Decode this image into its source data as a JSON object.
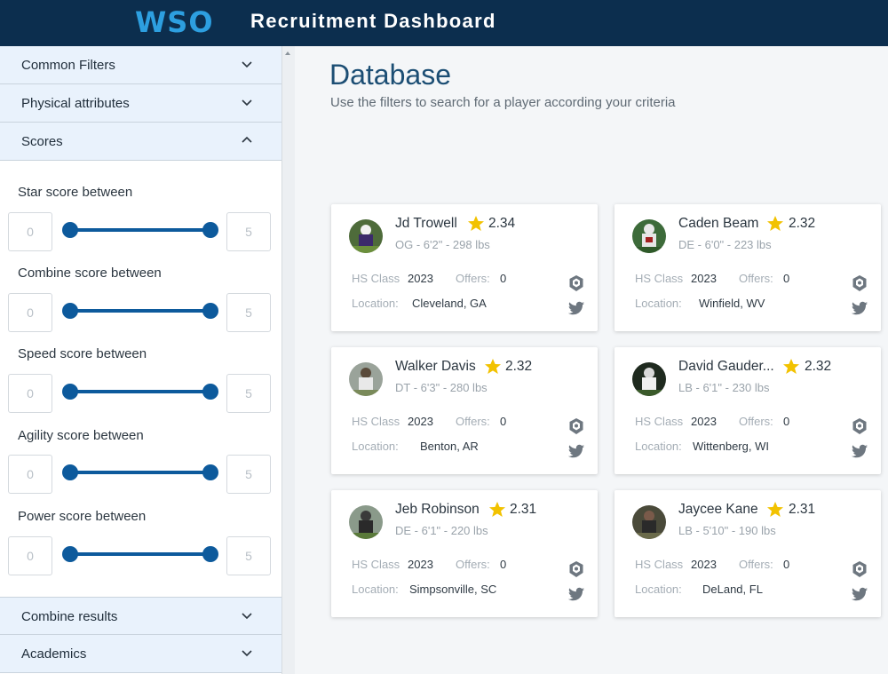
{
  "header": {
    "logo": "WSO",
    "title": "Recruitment Dashboard"
  },
  "sidebar": {
    "top_sections": [
      {
        "label": "Common Filters",
        "state": "collapsed"
      },
      {
        "label": "Physical attributes",
        "state": "collapsed"
      },
      {
        "label": "Scores",
        "state": "expanded"
      }
    ],
    "score_filters": [
      {
        "label": "Star score between",
        "min": "0",
        "max": "5",
        "range": [
          0,
          5
        ]
      },
      {
        "label": "Combine score between",
        "min": "0",
        "max": "5",
        "range": [
          0,
          5
        ]
      },
      {
        "label": "Speed score between",
        "min": "0",
        "max": "5",
        "range": [
          0,
          5
        ]
      },
      {
        "label": "Agility score between",
        "min": "0",
        "max": "5",
        "range": [
          0,
          5
        ]
      },
      {
        "label": "Power score between",
        "min": "0",
        "max": "5",
        "range": [
          0,
          5
        ]
      }
    ],
    "bottom_sections": [
      {
        "label": "Combine results",
        "state": "collapsed"
      },
      {
        "label": "Academics",
        "state": "collapsed"
      }
    ]
  },
  "main": {
    "title": "Database",
    "subtitle": "Use the filters to search for a player according your criteria",
    "field_labels": {
      "hs_class": "HS Class",
      "offers": "Offers:",
      "location": "Location:"
    },
    "players": [
      {
        "name": "Jd Trowell",
        "rating": "2.34",
        "meta": "OG - 6'2\" - 298 lbs",
        "hs_class": "2023",
        "offers": "0",
        "location": "Cleveland, GA"
      },
      {
        "name": "Caden Beam",
        "rating": "2.32",
        "meta": "DE - 6'0\" - 223 lbs",
        "hs_class": "2023",
        "offers": "0",
        "location": "Winfield, WV"
      },
      {
        "name": "Walker Davis",
        "rating": "2.32",
        "meta": "DT - 6'3\" - 280 lbs",
        "hs_class": "2023",
        "offers": "0",
        "location": "Benton, AR"
      },
      {
        "name": "David Gauder...",
        "rating": "2.32",
        "meta": "LB - 6'1\" - 230 lbs",
        "hs_class": "2023",
        "offers": "0",
        "location": "Wittenberg, WI"
      },
      {
        "name": "Jeb Robinson",
        "rating": "2.31",
        "meta": "DE - 6'1\" - 220 lbs",
        "hs_class": "2023",
        "offers": "0",
        "location": "Simpsonville, SC"
      },
      {
        "name": "Jaycee Kane",
        "rating": "2.31",
        "meta": "LB - 5'10\" - 190 lbs",
        "hs_class": "2023",
        "offers": "0",
        "location": "DeLand, FL"
      }
    ]
  },
  "colors": {
    "header_bg": "#0c2e4e",
    "logo": "#2d9fe0",
    "accent": "#0d5a9c",
    "star": "#f2c200",
    "title": "#1c4e74"
  },
  "icons": [
    "chevron-down-icon",
    "chevron-up-icon",
    "star-icon",
    "hudl-icon",
    "twitter-icon"
  ]
}
